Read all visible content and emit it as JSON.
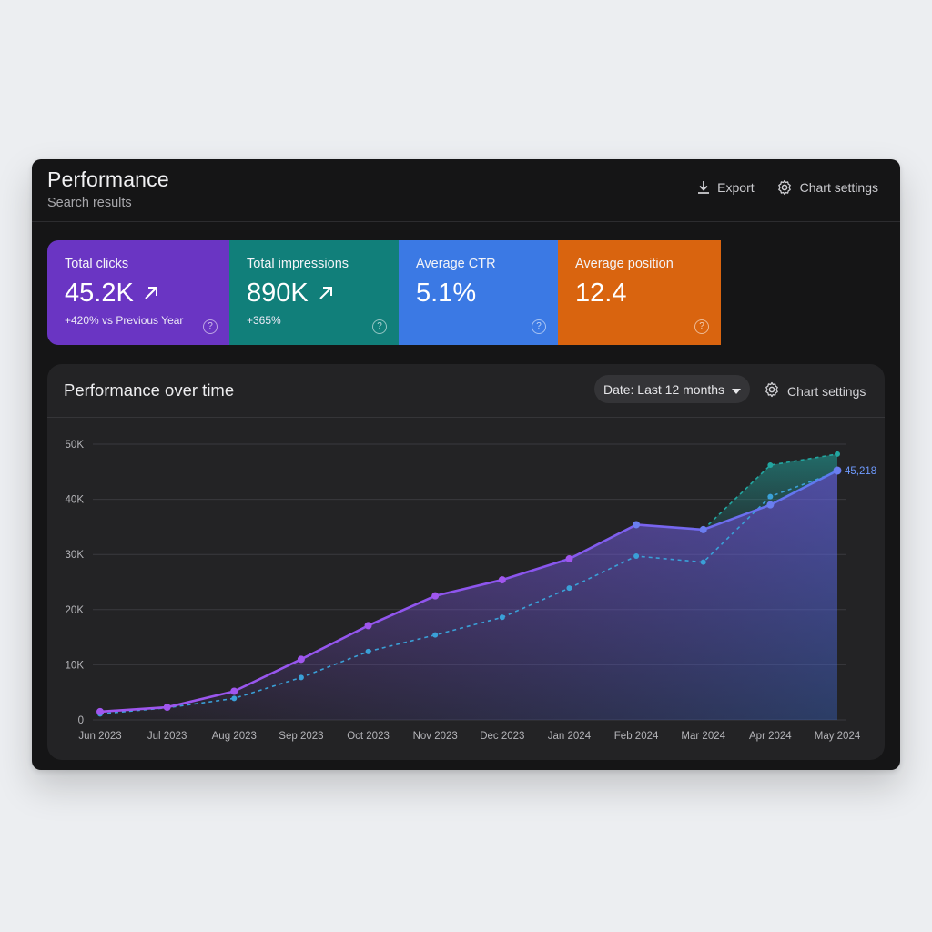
{
  "header": {
    "title": "Performance",
    "subtitle": "Search results",
    "export_label": "Export",
    "chart_settings_label": "Chart settings",
    "export_icon": "download-icon",
    "settings_icon": "gear-icon"
  },
  "metrics": [
    {
      "label": "Total clicks",
      "value": "45.2K",
      "sub": "+420% vs Previous Year",
      "color": "#6a35c3"
    },
    {
      "label": "Total impressions",
      "value": "890K",
      "sub": "+365%",
      "color": "#117f7a"
    },
    {
      "label": "Average CTR",
      "value": "5.1%",
      "sub": "",
      "color": "#3b79e4"
    },
    {
      "label": "Average position",
      "value": "12.4",
      "sub": "",
      "color": "#d9640f"
    }
  ],
  "chart_panel": {
    "title": "Performance over time",
    "date_filter": "Date: Last 12 months",
    "chart_settings_label": "Chart settings"
  },
  "chart_data": {
    "type": "line",
    "categories": [
      "Jun 2023",
      "Jul 2023",
      "Aug 2023",
      "Sep 2023",
      "Oct 2023",
      "Nov 2023",
      "Dec 2023",
      "Jan 2024",
      "Feb 2024",
      "Mar 2024",
      "Apr 2024",
      "May 2024"
    ],
    "ylim": [
      0,
      50000
    ],
    "yticks": [
      0,
      10000,
      20000,
      30000,
      40000,
      50000
    ],
    "ytick_labels": [
      "0",
      "10K",
      "20K",
      "30K",
      "40K",
      "50K"
    ],
    "grid": true,
    "series": [
      {
        "values": [
          1500,
          2300,
          5200,
          11000,
          17100,
          22500,
          25400,
          29200,
          35400,
          34500,
          39000,
          45218
        ],
        "color": "#9b59f0",
        "style": "solid",
        "area": true
      },
      {
        "values": [
          1100,
          2200,
          3900,
          7700,
          12400,
          15400,
          18600,
          23900,
          29700,
          28600,
          40500,
          45000
        ],
        "color": "#3aa0d8",
        "style": "dashed"
      },
      {
        "values": [
          null,
          null,
          null,
          null,
          null,
          null,
          null,
          null,
          null,
          null,
          46200,
          48200
        ],
        "color": "#22a6a0",
        "style": "dashed",
        "area": true
      }
    ],
    "end_label": "45,218"
  }
}
